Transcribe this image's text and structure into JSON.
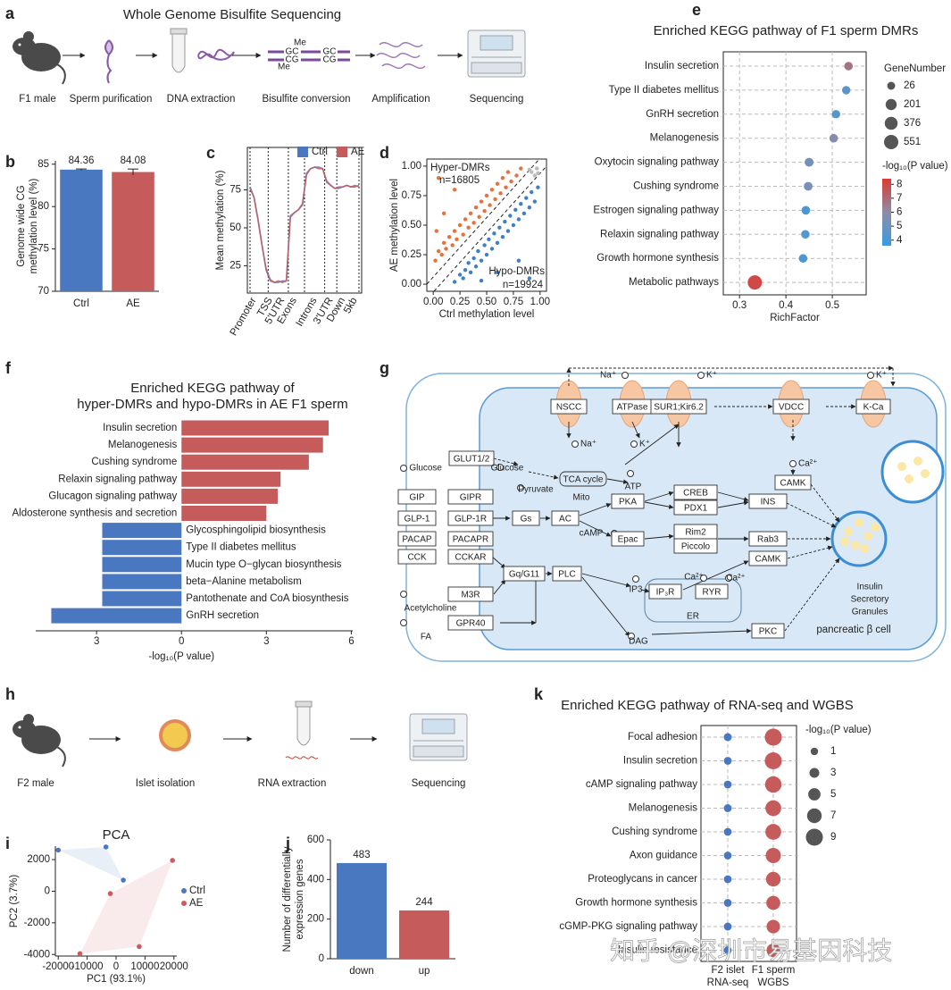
{
  "panel_labels": [
    "a",
    "b",
    "c",
    "d",
    "e",
    "f",
    "g",
    "h",
    "i",
    "j",
    "k"
  ],
  "workflow_a": {
    "title": "Whole Genome Bisulfite Sequencing",
    "steps": [
      "F1 male",
      "Sperm purification",
      "DNA extraction",
      "Bisulfite conversion",
      "Amplification",
      "Sequencing"
    ],
    "icon_texts": [
      "Me",
      "GC",
      "CG",
      "GC",
      "CG",
      "Me"
    ]
  },
  "workflow_h": {
    "steps": [
      "F2 male",
      "Islet isolation",
      "RNA extraction",
      "Sequencing"
    ]
  },
  "pathway_g": {
    "nodes": [
      {
        "label": "NSCC",
        "color": "#c0392b"
      },
      {
        "label": "ATPase",
        "color": "#222222"
      },
      {
        "label": "SUR1;Kir6.2",
        "color": "#c0392b"
      },
      {
        "label": "VDCC",
        "color": "#222222"
      },
      {
        "label": "K-Ca",
        "color": "#c0392b"
      },
      {
        "label": "GLUT1/2",
        "color": "#c0392b"
      },
      {
        "label": "GIP",
        "color": "#222222"
      },
      {
        "label": "GIPR",
        "color": "#222222"
      },
      {
        "label": "GLP-1",
        "color": "#c0392b"
      },
      {
        "label": "GLP-1R",
        "color": "#c0392b"
      },
      {
        "label": "PACAP",
        "color": "#222222"
      },
      {
        "label": "PACAPR",
        "color": "#222222"
      },
      {
        "label": "CCK",
        "color": "#222222"
      },
      {
        "label": "CCKAR",
        "color": "#c0392b"
      },
      {
        "label": "M3R",
        "color": "#c0392b"
      },
      {
        "label": "GPR40",
        "color": "#222222"
      },
      {
        "label": "Gs",
        "color": "#c0392b"
      },
      {
        "label": "AC",
        "color": "#c0392b"
      },
      {
        "label": "Gq/G11",
        "color": "#c0392b"
      },
      {
        "label": "PLC",
        "color": "#c0392b"
      },
      {
        "label": "PKA",
        "color": "#c0392b"
      },
      {
        "label": "Epac",
        "color": "#c0392b"
      },
      {
        "label": "CREB",
        "color": "#c0392b"
      },
      {
        "label": "PDX1",
        "color": "#c0392b"
      },
      {
        "label": "INS",
        "color": "#222222"
      },
      {
        "label": "Rim2",
        "color": "#c0392b"
      },
      {
        "label": "Piccolo",
        "color": "#c0392b"
      },
      {
        "label": "Rab3",
        "color": "#222222"
      },
      {
        "label": "CAMK",
        "color": "#c0392b"
      },
      {
        "label": "CAMK",
        "color": "#c0392b"
      },
      {
        "label": "IP₃R",
        "color": "#c0392b"
      },
      {
        "label": "RYR",
        "color": "#c0392b"
      },
      {
        "label": "PKC",
        "color": "#c0392b"
      },
      {
        "label": "TCA cycle",
        "color": "#222222"
      }
    ],
    "texts": [
      "Na⁺",
      "K⁺",
      "K⁺",
      "Na⁺",
      "K⁺",
      "Ca²⁺",
      "Glucose",
      "Glucose",
      "Pyruvate",
      "Mito",
      "ATP",
      "cAMP",
      "IP3",
      "Ca²⁺",
      "Ca²⁺",
      "ER",
      "DAG",
      "Acetylcholine",
      "FA",
      "Insulin",
      "Secretory",
      "Granules",
      "pancreatic β cell"
    ]
  },
  "chart_data": [
    {
      "type": "bar",
      "y_label": [
        "Genome wide CG",
        "methylation level (%)"
      ],
      "categories": [
        "Ctrl",
        "AE"
      ],
      "values": [
        84.36,
        84.08
      ],
      "errors": [
        0.08,
        0.35
      ],
      "colors": [
        "#4a78c0",
        "#c65b5b"
      ],
      "ylim": [
        70,
        85.4
      ],
      "yticks": [
        70,
        75,
        80,
        85
      ]
    },
    {
      "type": "line",
      "y_label": "Mean methylation (%)",
      "categories": [
        null,
        "Promoter",
        null,
        null,
        null,
        "TSS",
        null,
        null,
        "5'UTR",
        null,
        null,
        "Exons",
        null,
        null,
        null,
        null,
        "Introns",
        null,
        null,
        null,
        "3'UTR",
        null,
        null,
        "Down",
        null,
        null,
        "5kb",
        null
      ],
      "series": [
        {
          "name": "Ctrl",
          "color": "#4a78c0",
          "values": [
            77,
            70,
            55,
            38,
            22,
            15,
            14,
            14,
            15,
            15,
            58,
            60,
            62,
            65,
            86,
            89,
            90,
            90,
            89,
            80,
            78,
            76,
            76,
            77,
            78,
            77,
            77,
            78
          ]
        },
        {
          "name": "AE",
          "color": "#c65b5b",
          "values": [
            76,
            70,
            55,
            38,
            23,
            16,
            14,
            15,
            14,
            15,
            57,
            60,
            62,
            66,
            85,
            89,
            90,
            89,
            89,
            81,
            78,
            76,
            77,
            77,
            78,
            77,
            78,
            77
          ]
        }
      ],
      "ylim": [
        7,
        103
      ],
      "yticks": [
        25,
        50,
        75
      ]
    },
    {
      "type": "scatter",
      "x_label": "Ctrl methylation level",
      "y_label": "AE methylation level",
      "annotations": [
        "Hyper-DMRs",
        "n=16805",
        "Hypo-DMRs",
        "n=19924"
      ],
      "series": [
        {
          "color": "#e8703a",
          "x": [
            0.02,
            0.05,
            0.08,
            0.1,
            0.12,
            0.15,
            0.18,
            0.2,
            0.22,
            0.25,
            0.28,
            0.3,
            0.33,
            0.35,
            0.38,
            0.4,
            0.43,
            0.45,
            0.48,
            0.5,
            0.53,
            0.55,
            0.58,
            0.6,
            0.63,
            0.65,
            0.68,
            0.7,
            0.73,
            0.78,
            0.82,
            0.03,
            0.1,
            0.2,
            0.05
          ],
          "y": [
            0.2,
            0.28,
            0.25,
            0.35,
            0.3,
            0.4,
            0.33,
            0.45,
            0.38,
            0.5,
            0.42,
            0.55,
            0.48,
            0.6,
            0.52,
            0.65,
            0.57,
            0.7,
            0.62,
            0.75,
            0.67,
            0.8,
            0.72,
            0.85,
            0.77,
            0.9,
            0.82,
            0.95,
            0.87,
            0.92,
            0.98,
            0.45,
            0.6,
            0.8,
            0.9
          ]
        },
        {
          "color": "#3f7fc6",
          "x": [
            0.2,
            0.28,
            0.25,
            0.35,
            0.3,
            0.4,
            0.33,
            0.45,
            0.38,
            0.5,
            0.42,
            0.55,
            0.48,
            0.6,
            0.52,
            0.65,
            0.57,
            0.7,
            0.62,
            0.75,
            0.67,
            0.8,
            0.72,
            0.85,
            0.77,
            0.9,
            0.82,
            0.95,
            0.87,
            0.92,
            0.98,
            0.45,
            0.6,
            0.8,
            0.9
          ],
          "y": [
            0.02,
            0.05,
            0.08,
            0.1,
            0.12,
            0.15,
            0.18,
            0.2,
            0.22,
            0.25,
            0.28,
            0.3,
            0.33,
            0.35,
            0.38,
            0.4,
            0.43,
            0.45,
            0.48,
            0.5,
            0.53,
            0.55,
            0.58,
            0.6,
            0.63,
            0.65,
            0.68,
            0.7,
            0.73,
            0.78,
            0.82,
            0.03,
            0.1,
            0.2,
            0.05
          ]
        },
        {
          "color": "#bbbbbb",
          "x": [
            0.92,
            0.95,
            0.97,
            0.9,
            0.98
          ],
          "y": [
            0.95,
            0.92,
            0.98,
            0.97,
            0.94
          ]
        }
      ],
      "xlim": [
        -0.06,
        1.06
      ],
      "ylim": [
        -0.06,
        1.06
      ],
      "xticks": [
        {
          "value": 0,
          "label": "0.00"
        },
        0.25,
        {
          "value": 0.5,
          "label": "0.50"
        },
        0.75,
        {
          "value": 1,
          "label": "1.00"
        }
      ],
      "yticks": [
        {
          "value": 0,
          "label": "0.00"
        },
        0.25,
        {
          "value": 0.5,
          "label": "0.50"
        },
        0.75,
        {
          "value": 1,
          "label": "1.00"
        }
      ]
    },
    {
      "type": "dot",
      "title": "Enriched KEGG pathway of F1 sperm DMRs",
      "categories": [
        "Insulin secretion",
        "Type II diabetes mellitus",
        "GnRH secretion",
        "Melanogenesis",
        "Oxytocin signaling pathway",
        "Cushing syndrome",
        "Estrogen signaling pathway",
        "Relaxin signaling pathway",
        "Growth hormone synthesis",
        "Metabolic pathways"
      ],
      "label_colors": [
        "#c0392b",
        "#c0392b",
        "#222222",
        "#222222",
        "#222222",
        "#222222",
        "#222222",
        "#222222",
        "#222222",
        "#222222"
      ],
      "x": [
        0.535,
        0.53,
        0.508,
        0.503,
        0.45,
        0.448,
        0.443,
        0.442,
        0.437,
        0.333
      ],
      "sizes": [
        45,
        40,
        40,
        45,
        60,
        55,
        50,
        45,
        45,
        551
      ],
      "pvalues": [
        6.7,
        4.6,
        4.4,
        5.8,
        5.3,
        5.4,
        4.1,
        4.3,
        4.2,
        8.0
      ],
      "x_label": "RichFactor",
      "xlim": [
        0.265,
        0.573
      ],
      "xticks": [
        0.3,
        0.4,
        0.5
      ],
      "grid": true,
      "size_legend": {
        "title": "GeneNumber",
        "values": [
          26,
          201,
          376,
          551
        ]
      },
      "color_legend": {
        "title": "-log₁₀(P value)",
        "ticks": [
          4,
          5,
          6,
          7,
          8
        ],
        "lim": [
          3.6,
          8.4
        ],
        "colors": [
          "#3b9be0",
          "#8c8ca6",
          "#dc3b33"
        ]
      }
    },
    {
      "type": "diverging_bar",
      "title": [
        "Enriched KEGG pathway of",
        "hyper-DMRs and hypo-DMRs in AE F1 sperm"
      ],
      "categories": [
        "Insulin secretion",
        "Melanogenesis",
        "Cushing syndrome",
        "Relaxin signaling pathway",
        "Glucagon signaling pathway",
        "Aldosterone synthesis and secretion",
        "Glycosphingolipid biosynthesis",
        "Type II diabetes mellitus",
        "Mucin type O−glycan biosynthesis",
        "beta−Alanine metabolism",
        "Pantothenate and CoA biosynthesis",
        "GnRH secretion"
      ],
      "label_colors": [
        "#c0392b",
        "#222222",
        "#222222",
        "#222222",
        "#222222",
        "#222222",
        "#222222",
        "#c0392b",
        "#222222",
        "#222222",
        "#222222",
        "#222222"
      ],
      "values": [
        5.2,
        5.0,
        4.5,
        3.5,
        3.4,
        3.0,
        -2.8,
        -2.8,
        -2.8,
        -2.8,
        -2.8,
        -4.6
      ],
      "colors": [
        "#c65b5b",
        "#c65b5b",
        "#c65b5b",
        "#c65b5b",
        "#c65b5b",
        "#c65b5b",
        "#4a78c0",
        "#4a78c0",
        "#4a78c0",
        "#4a78c0",
        "#4a78c0",
        "#4a78c0"
      ],
      "x_label": "-log₁₀(P value)",
      "xlim": [
        -5.15,
        6.05
      ],
      "xticks": [
        {
          "value": -3,
          "label": "3"
        },
        0,
        3,
        6
      ]
    },
    {
      "type": "scatter",
      "title": "PCA",
      "x_label": "PC1 (93.1%)",
      "y_label": "PC2 (3.7%)",
      "hull": true,
      "series": [
        {
          "name": "Ctrl",
          "color": "#4a78c0",
          "x": [
            -20000,
            -3500,
            2500
          ],
          "y": [
            2600,
            2800,
            700
          ]
        },
        {
          "name": "AE",
          "color": "#d05a5a",
          "x": [
            19500,
            -2000,
            -12500,
            8000
          ],
          "y": [
            1950,
            -150,
            -3950,
            -3500
          ]
        }
      ],
      "xlim": [
        -21000,
        21000
      ],
      "ylim": [
        -4100,
        2850
      ],
      "xticks": [
        -20000,
        -10000,
        0,
        10000,
        20000
      ],
      "yticks": [
        -4000,
        -2000,
        0,
        2000
      ]
    },
    {
      "type": "bar",
      "y_label": [
        "Number of differentially",
        "expression genes"
      ],
      "categories": [
        "down",
        "up"
      ],
      "values": [
        483,
        244
      ],
      "colors": [
        "#4a78c0",
        "#c65b5b"
      ],
      "ylim": [
        0,
        600
      ],
      "yticks": [
        0,
        200,
        400,
        600
      ]
    },
    {
      "type": "dot_matrix",
      "title": "Enriched KEGG pathway of RNA-seq and WGBS",
      "categories": [
        "Focal adhesion",
        "Insulin secretion",
        "cAMP signaling pathway",
        "Melanogenesis",
        "Cushing syndrome",
        "Axon guidance",
        "Proteoglycans in cancer",
        "Growth hormone synthesis",
        "cGMP-PKG signaling pathway",
        "Insulin resistance"
      ],
      "label_colors": [
        "#222222",
        "#c0392b",
        "#222222",
        "#222222",
        "#222222",
        "#222222",
        "#222222",
        "#222222",
        "#222222",
        "#222222"
      ],
      "columns": [
        [
          "F2 islet",
          "RNA-seq"
        ],
        [
          "F1 sperm",
          "WGBS"
        ]
      ],
      "series": [
        {
          "color": "#4a78c0",
          "values": [
            1.5,
            1.3,
            1.3,
            1.4,
            1.3,
            1.3,
            1.3,
            1.3,
            1.4,
            1.3
          ]
        },
        {
          "color": "#c65b5b",
          "values": [
            9,
            9,
            8.5,
            8,
            8,
            7.5,
            7,
            6.5,
            6,
            6
          ]
        }
      ],
      "size_legend": {
        "title": "-log₁₀(P value)",
        "values": [
          1,
          3,
          5,
          7,
          9
        ]
      }
    }
  ],
  "watermark": "知乎 @深圳市易基因科技"
}
